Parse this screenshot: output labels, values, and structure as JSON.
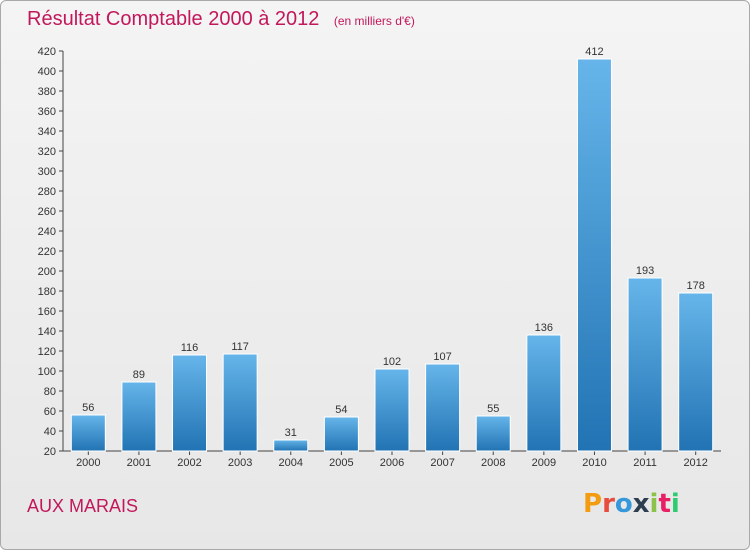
{
  "title": "Résultat Comptable 2000 à 2012",
  "subtitle": "(en milliers d'€)",
  "city": "AUX MARAIS",
  "logo": {
    "letters": [
      "P",
      "r",
      "o",
      "x",
      "i",
      "t",
      "i"
    ],
    "colors": [
      "#f39c12",
      "#e74c3c",
      "#3498db",
      "#2c3e50",
      "#8bc34a",
      "#e91e63",
      "#2ecc71"
    ]
  },
  "colors": {
    "bar_light": "#66b5ea",
    "bar_dark": "#2173b3",
    "title": "#c2185b"
  },
  "chart_data": {
    "type": "bar",
    "title": "Résultat Comptable 2000 à 2012",
    "subtitle": "(en milliers d'€)",
    "xlabel": "",
    "ylabel": "",
    "categories": [
      "2000",
      "2001",
      "2002",
      "2003",
      "2004",
      "2005",
      "2006",
      "2007",
      "2008",
      "2009",
      "2010",
      "2011",
      "2012"
    ],
    "values": [
      56,
      89,
      116,
      117,
      31,
      54,
      102,
      107,
      55,
      136,
      412,
      193,
      178
    ],
    "ylim": [
      20,
      420
    ],
    "yticks": [
      20,
      40,
      60,
      80,
      100,
      120,
      140,
      160,
      180,
      200,
      220,
      240,
      260,
      280,
      300,
      320,
      340,
      360,
      380,
      400,
      420
    ],
    "grid": false
  }
}
